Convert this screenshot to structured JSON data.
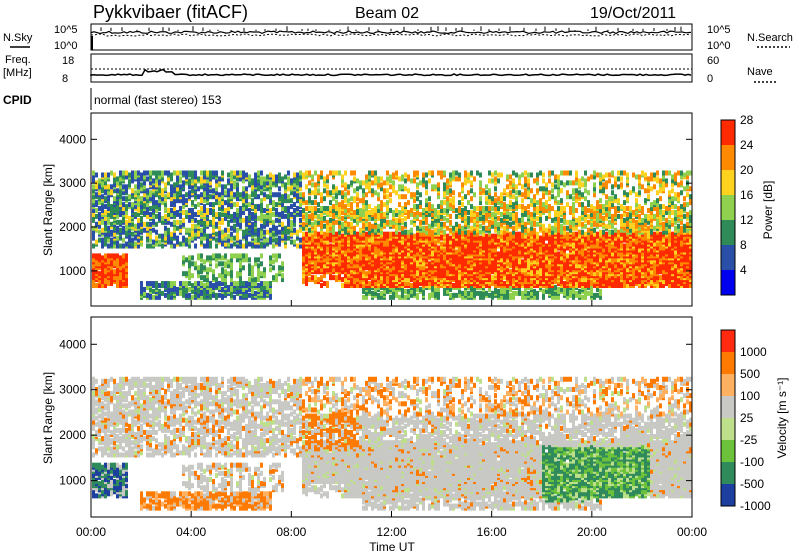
{
  "header": {
    "station": "Pykkvibaer (fitACF)",
    "beam": "Beam 02",
    "date": "19/Oct/2011"
  },
  "top_panels": {
    "nsky_label": "N.Sky",
    "nsky_top_tick": "10^5",
    "nsky_bottom_tick": "10^0",
    "nsearch_label": "N.Search",
    "nsearch_top_tick": "10^5",
    "nsearch_bottom_tick": "10^0",
    "freq_label": "Freq.",
    "freq_unit": "[MHz]",
    "freq_top_tick": "18",
    "freq_bottom_tick": "8",
    "nave_label": "Nave",
    "nave_top_tick": "60",
    "nave_bottom_tick": "0",
    "cpid_label": "CPID",
    "cpid_text": "normal (fast stereo) 153"
  },
  "chart_data": [
    {
      "type": "heatmap",
      "title": "",
      "ylabel": "Slant Range [km]",
      "xlabel": "",
      "ylim": [
        200,
        4600
      ],
      "yticks": [
        "1000",
        "2000",
        "3000",
        "4000"
      ],
      "colorbar_label": "Power [dB]",
      "colorbar_ticks": [
        "4",
        "8",
        "12",
        "16",
        "20",
        "24",
        "28"
      ],
      "colors": [
        "#0000ee",
        "#2a4fa8",
        "#2e8b57",
        "#8fd14f",
        "#ffd21f",
        "#ff8a00",
        "#ff2a00"
      ]
    },
    {
      "type": "heatmap",
      "title": "",
      "ylabel": "Slant Range [km]",
      "xlabel": "Time UT",
      "ylim": [
        200,
        4600
      ],
      "yticks": [
        "1000",
        "2000",
        "3000",
        "4000"
      ],
      "xticks": [
        "00:00",
        "04:00",
        "08:00",
        "12:00",
        "16:00",
        "20:00",
        "00:00"
      ],
      "colorbar_label": "Velocity [m s⁻¹]",
      "colorbar_ticks": [
        "1000",
        "500",
        "100",
        "25",
        "-25",
        "-100",
        "-500",
        "-1000"
      ],
      "colors": [
        "#1d3fa0",
        "#2f8a5c",
        "#6cc23a",
        "#bfe08a",
        "#c8c8c4",
        "#ffb060",
        "#ff7a00",
        "#ff2a10"
      ]
    }
  ]
}
